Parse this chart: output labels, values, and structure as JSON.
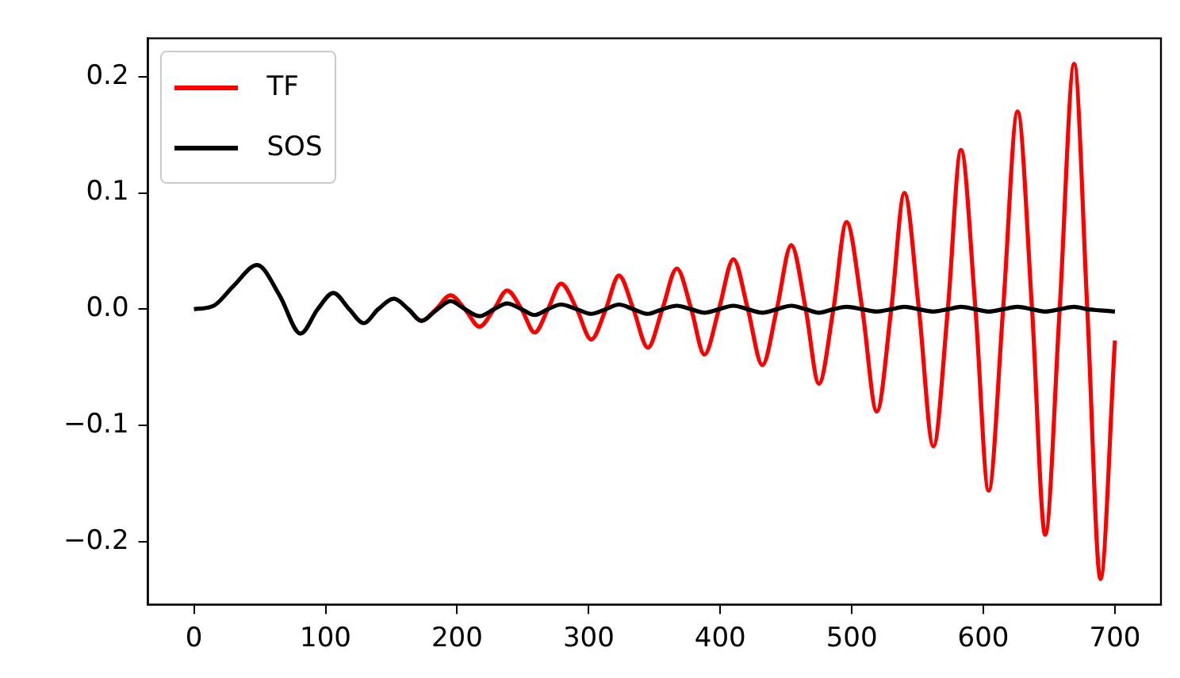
{
  "chart_data": {
    "type": "line",
    "x": [
      0,
      15,
      30,
      48,
      65,
      81,
      94,
      106,
      118,
      129,
      140,
      152,
      163,
      173,
      184,
      195,
      206,
      217,
      228,
      238,
      249,
      259,
      269,
      279,
      291,
      302,
      313,
      323,
      334,
      345,
      356,
      367,
      378,
      388,
      399,
      410,
      421,
      432,
      443,
      454,
      465,
      475,
      486,
      496,
      508,
      519,
      530,
      540,
      551,
      562,
      573,
      583,
      594,
      604,
      615,
      626,
      637,
      647,
      658,
      669,
      679,
      689,
      700
    ],
    "series": [
      {
        "name": "TF",
        "color": "#ff0000",
        "values": [
          null,
          null,
          null,
          null,
          null,
          null,
          null,
          null,
          null,
          null,
          null,
          null,
          0,
          -0.01,
          0,
          0.012,
          0,
          -0.015,
          0,
          0.016,
          0,
          -0.02,
          0,
          0.022,
          0,
          -0.026,
          0,
          0.029,
          0,
          -0.033,
          0,
          0.035,
          0,
          -0.039,
          0,
          0.043,
          0,
          -0.048,
          0,
          0.055,
          0,
          -0.064,
          0,
          0.075,
          0,
          -0.088,
          0,
          0.1,
          0,
          -0.118,
          0,
          0.137,
          0,
          -0.156,
          0,
          0.17,
          0,
          -0.194,
          0,
          0.211,
          0,
          -0.232,
          -0.027
        ]
      },
      {
        "name": "SOS",
        "color": "#000000",
        "values": [
          0,
          0.003,
          0.02,
          0.038,
          0.012,
          -0.021,
          0,
          0.014,
          0,
          -0.012,
          0,
          0.009,
          0,
          -0.01,
          -0.001,
          0.007,
          0,
          -0.006,
          0,
          0.005,
          0,
          -0.005,
          0,
          0.004,
          0,
          -0.004,
          0,
          0.004,
          0,
          -0.004,
          0,
          0.003,
          0,
          -0.003,
          0,
          0.003,
          0,
          -0.003,
          0,
          0.003,
          0,
          -0.003,
          0,
          0.002,
          0,
          -0.002,
          0,
          0.002,
          0,
          -0.002,
          0,
          0.002,
          0,
          -0.002,
          0,
          0.002,
          0,
          -0.002,
          0,
          0.002,
          0,
          -0.001,
          -0.002
        ]
      }
    ],
    "xlim": [
      -35,
      735
    ],
    "xticks": [
      0,
      100,
      200,
      300,
      400,
      500,
      600,
      700
    ],
    "ylim": [
      -0.254,
      0.233
    ],
    "yticks": [
      {
        "value": -0.2,
        "label": "−0.2"
      },
      {
        "value": -0.1,
        "label": "−0.1"
      },
      {
        "value": 0,
        "label": "0.0"
      },
      {
        "value": 0.1,
        "label": "0.1"
      },
      {
        "value": 0.2,
        "label": "0.2"
      }
    ],
    "legend": "top left",
    "marker": "none",
    "line_style": "solid",
    "grid": false
  }
}
